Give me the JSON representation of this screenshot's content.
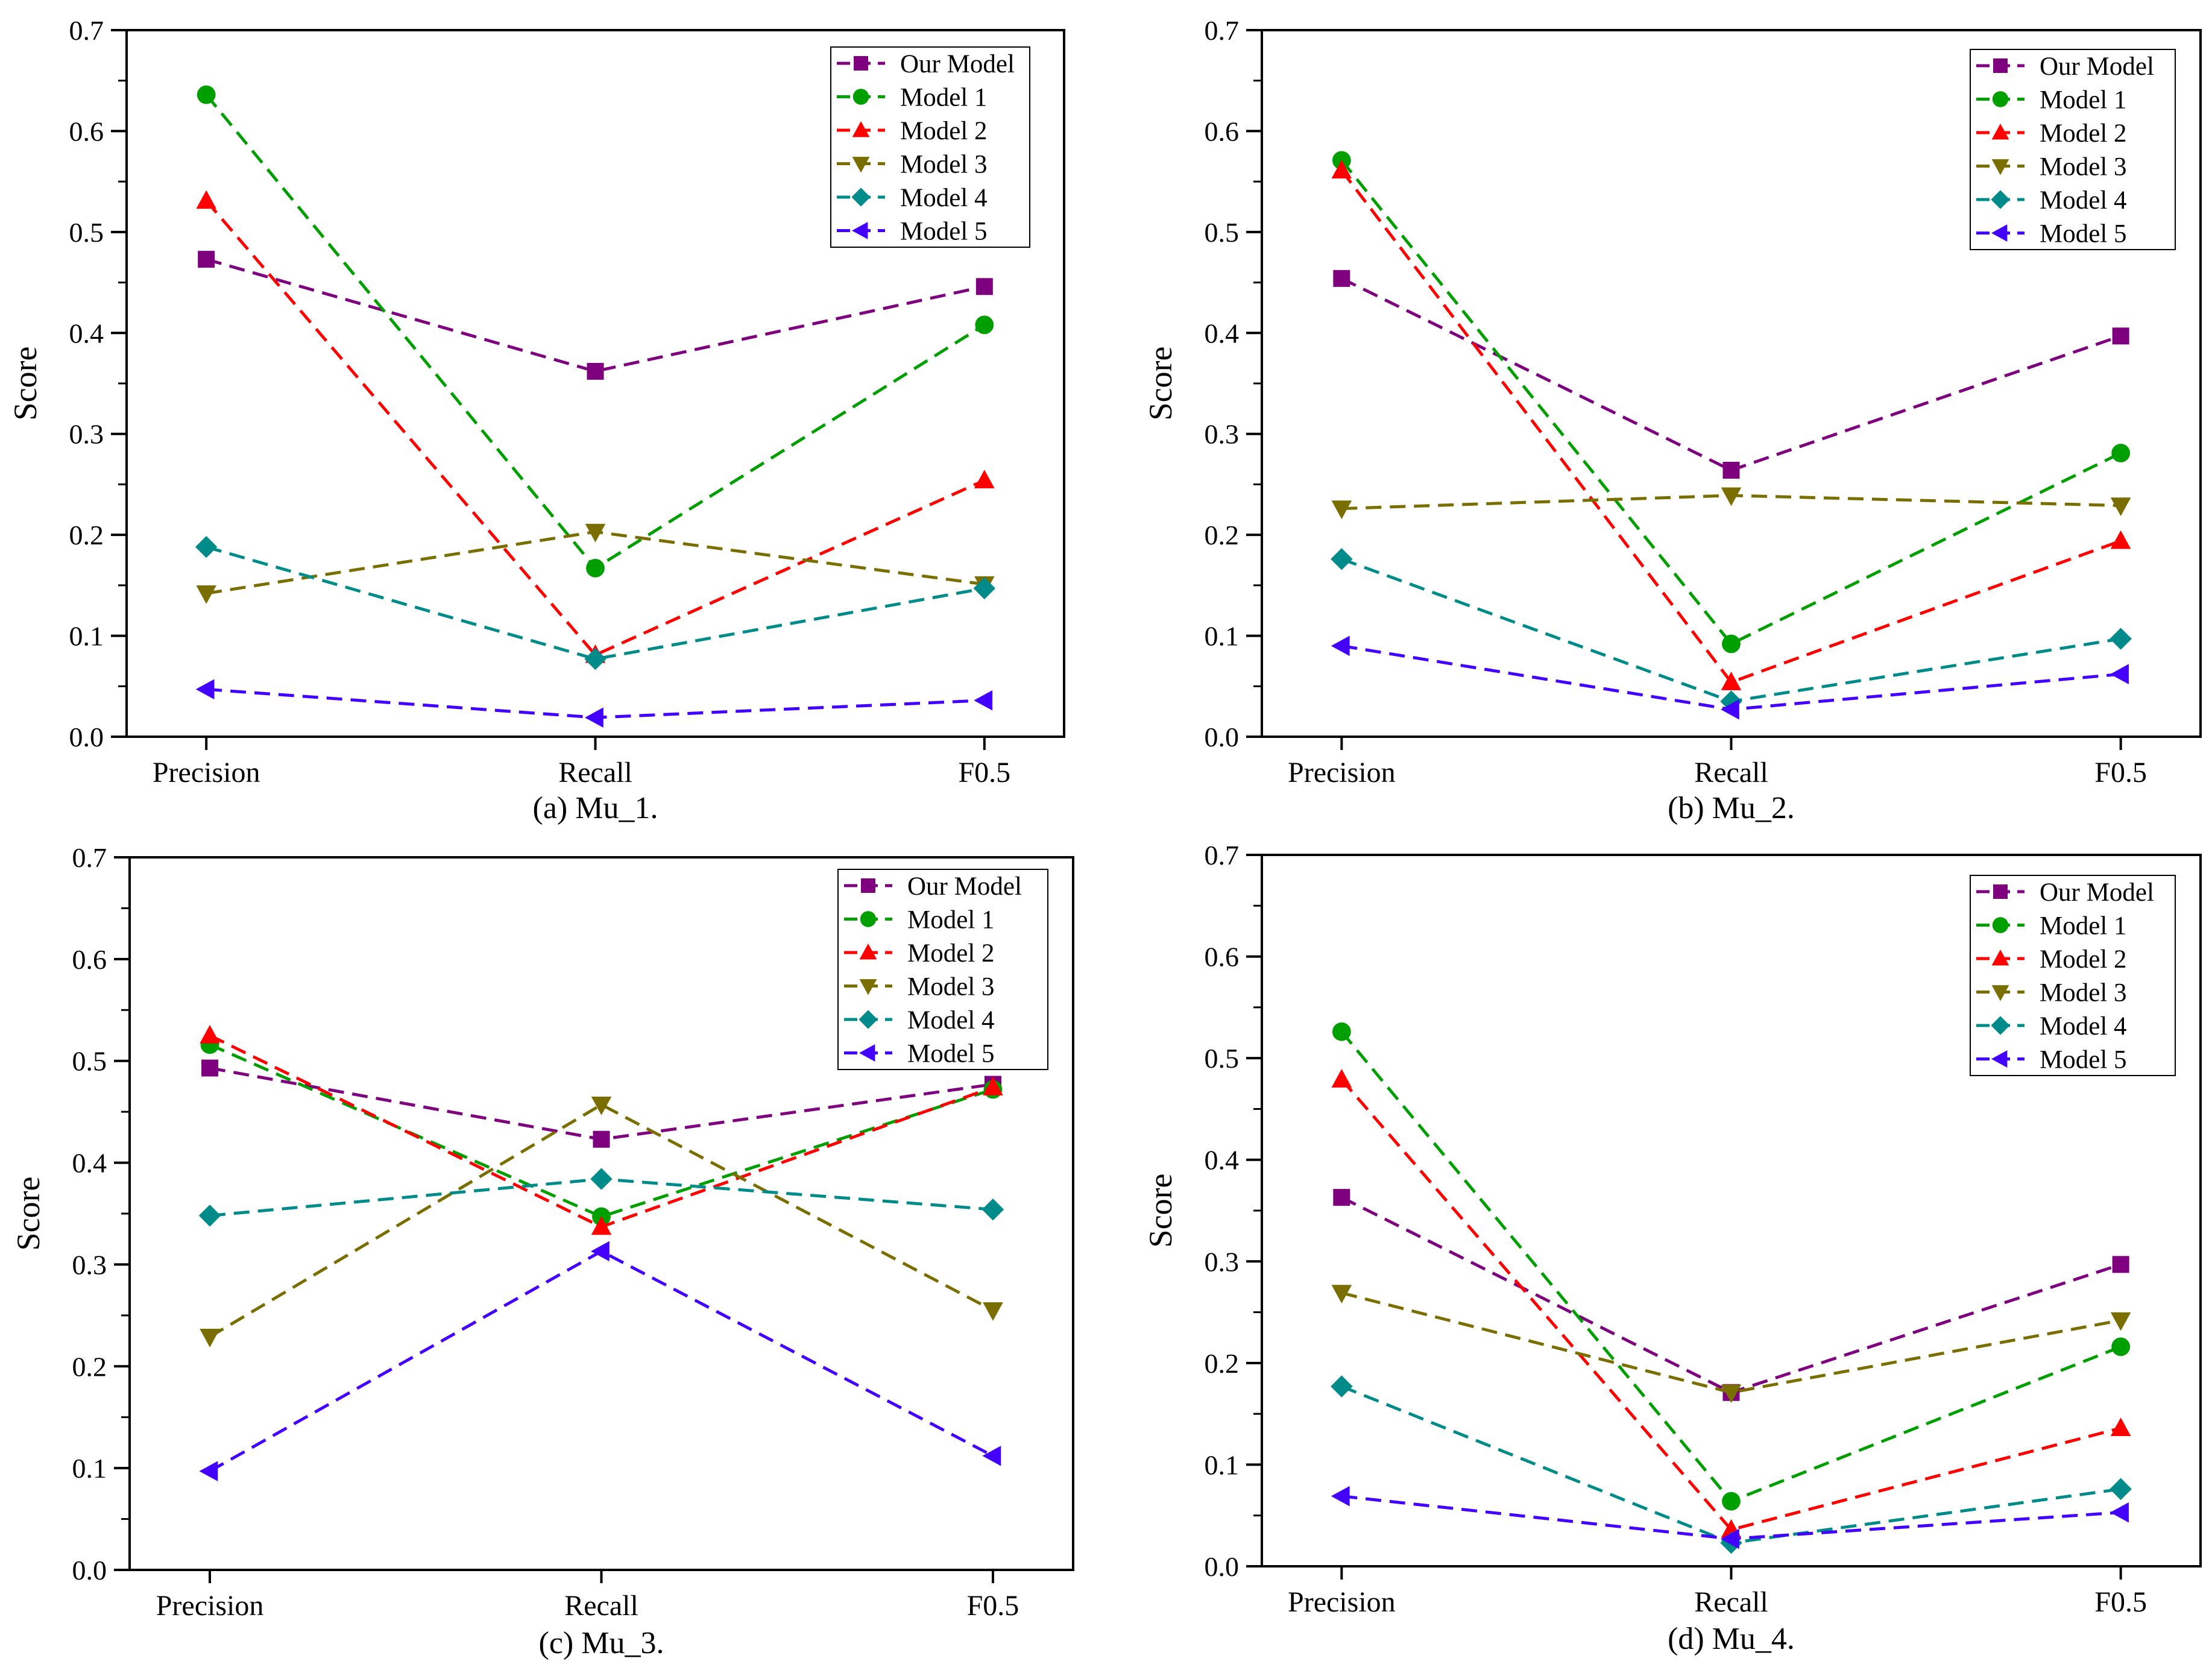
{
  "chart_data": [
    {
      "type": "line",
      "caption": "(a) Mu_1.",
      "ylabel": "Score",
      "categories": [
        "Precision",
        "Recall",
        "F0.5"
      ],
      "ylim": [
        0,
        0.7
      ],
      "yticks": [
        "0.0",
        "0.1",
        "0.2",
        "0.3",
        "0.4",
        "0.5",
        "0.6",
        "0.7"
      ],
      "legend_position": "top-right",
      "series": [
        {
          "name": "Our Model",
          "values": [
            0.473,
            0.362,
            0.446
          ]
        },
        {
          "name": "Model 1",
          "values": [
            0.636,
            0.167,
            0.408
          ]
        },
        {
          "name": "Model 2",
          "values": [
            0.531,
            0.081,
            0.254
          ]
        },
        {
          "name": "Model 3",
          "values": [
            0.142,
            0.203,
            0.151
          ]
        },
        {
          "name": "Model 4",
          "values": [
            0.188,
            0.077,
            0.147
          ]
        },
        {
          "name": "Model 5",
          "values": [
            0.047,
            0.019,
            0.036
          ]
        }
      ]
    },
    {
      "type": "line",
      "caption": "(b) Mu_2.",
      "ylabel": "Score",
      "categories": [
        "Precision",
        "Recall",
        "F0.5"
      ],
      "ylim": [
        0,
        0.7
      ],
      "yticks": [
        "0.0",
        "0.1",
        "0.2",
        "0.3",
        "0.4",
        "0.5",
        "0.6",
        "0.7"
      ],
      "legend_position": "top-right",
      "series": [
        {
          "name": "Our Model",
          "values": [
            0.454,
            0.264,
            0.397
          ]
        },
        {
          "name": "Model 1",
          "values": [
            0.571,
            0.092,
            0.281
          ]
        },
        {
          "name": "Model 2",
          "values": [
            0.561,
            0.054,
            0.194
          ]
        },
        {
          "name": "Model 3",
          "values": [
            0.226,
            0.239,
            0.229
          ]
        },
        {
          "name": "Model 4",
          "values": [
            0.176,
            0.035,
            0.097
          ]
        },
        {
          "name": "Model 5",
          "values": [
            0.09,
            0.027,
            0.062
          ]
        }
      ]
    },
    {
      "type": "line",
      "caption": "(c) Mu_3.",
      "ylabel": "Score",
      "categories": [
        "Precision",
        "Recall",
        "F0.5"
      ],
      "ylim": [
        0,
        0.7
      ],
      "yticks": [
        "0.0",
        "0.1",
        "0.2",
        "0.3",
        "0.4",
        "0.5",
        "0.6",
        "0.7"
      ],
      "legend_position": "top-right",
      "series": [
        {
          "name": "Our Model",
          "values": [
            0.493,
            0.423,
            0.477
          ]
        },
        {
          "name": "Model 1",
          "values": [
            0.516,
            0.347,
            0.472
          ]
        },
        {
          "name": "Model 2",
          "values": [
            0.525,
            0.337,
            0.474
          ]
        },
        {
          "name": "Model 3",
          "values": [
            0.229,
            0.457,
            0.255
          ]
        },
        {
          "name": "Model 4",
          "values": [
            0.348,
            0.384,
            0.354
          ]
        },
        {
          "name": "Model 5",
          "values": [
            0.097,
            0.313,
            0.112
          ]
        }
      ]
    },
    {
      "type": "line",
      "caption": "(d) Mu_4.",
      "ylabel": "Score",
      "categories": [
        "Precision",
        "Recall",
        "F0.5"
      ],
      "ylim": [
        0,
        0.7
      ],
      "yticks": [
        "0.0",
        "0.1",
        "0.2",
        "0.3",
        "0.4",
        "0.5",
        "0.6",
        "0.7"
      ],
      "legend_position": "top-right",
      "series": [
        {
          "name": "Our Model",
          "values": [
            0.363,
            0.171,
            0.297
          ]
        },
        {
          "name": "Model 1",
          "values": [
            0.526,
            0.064,
            0.216
          ]
        },
        {
          "name": "Model 2",
          "values": [
            0.479,
            0.036,
            0.136
          ]
        },
        {
          "name": "Model 3",
          "values": [
            0.269,
            0.171,
            0.242
          ]
        },
        {
          "name": "Model 4",
          "values": [
            0.177,
            0.023,
            0.076
          ]
        },
        {
          "name": "Model 5",
          "values": [
            0.069,
            0.027,
            0.053
          ]
        }
      ]
    }
  ],
  "series_style": [
    {
      "name": "Our Model",
      "color": "#7f007f",
      "marker": "square"
    },
    {
      "name": "Model 1",
      "color": "#009f00",
      "marker": "circle"
    },
    {
      "name": "Model 2",
      "color": "#ff0000",
      "marker": "triangle-up"
    },
    {
      "name": "Model 3",
      "color": "#7a6e00",
      "marker": "triangle-down"
    },
    {
      "name": "Model 4",
      "color": "#008b8b",
      "marker": "diamond"
    },
    {
      "name": "Model 5",
      "color": "#4400ff",
      "marker": "triangle-left"
    }
  ]
}
